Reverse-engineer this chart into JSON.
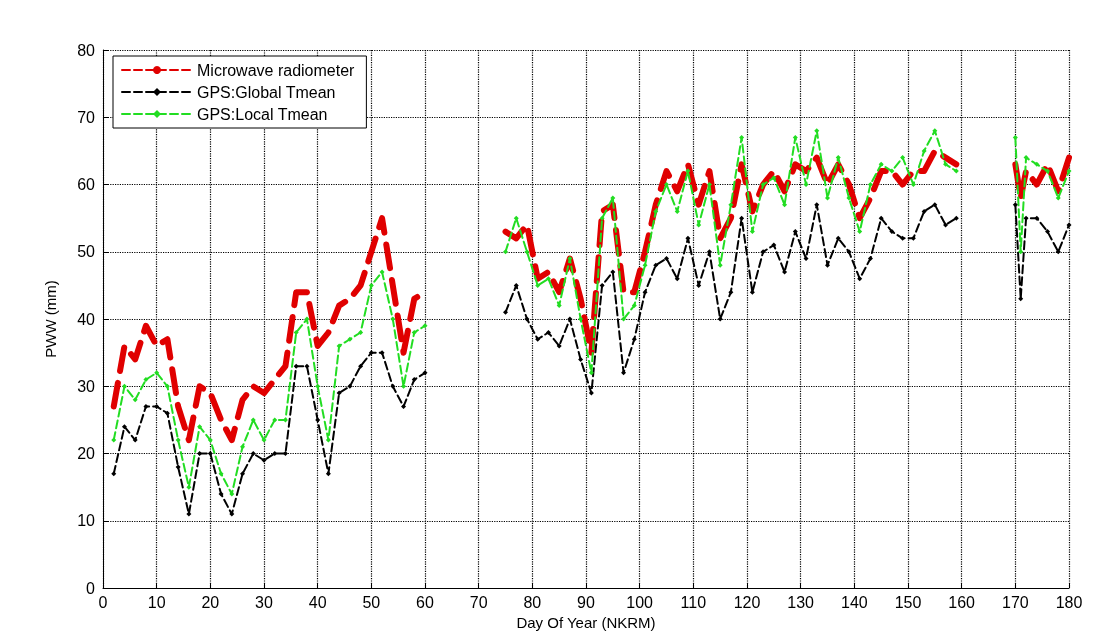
{
  "chart_data": {
    "type": "line",
    "xlabel": "Day Of Year (NKRM)",
    "ylabel": "PWW (mm)",
    "x": [
      2,
      4,
      6,
      8,
      10,
      12,
      14,
      16,
      18,
      20,
      22,
      24,
      26,
      28,
      30,
      32,
      34,
      36,
      38,
      40,
      42,
      44,
      46,
      48,
      50,
      52,
      54,
      56,
      58,
      60,
      68,
      75,
      77,
      79,
      81,
      83,
      85,
      87,
      89,
      91,
      93,
      95,
      97,
      99,
      101,
      103,
      105,
      107,
      109,
      111,
      113,
      115,
      117,
      119,
      121,
      123,
      125,
      127,
      129,
      131,
      133,
      135,
      137,
      139,
      141,
      143,
      145,
      147,
      149,
      151,
      153,
      155,
      157,
      159,
      165,
      170,
      171,
      172,
      174,
      176,
      178,
      180
    ],
    "series": [
      {
        "name": "Microwave radiometer",
        "color": "#e00000",
        "marker": "none",
        "line_style": "dashed",
        "values": [
          27,
          36,
          34,
          39,
          36,
          37,
          27,
          22,
          30,
          29,
          25,
          22,
          28,
          30,
          29,
          31,
          33,
          44,
          44,
          36,
          38,
          42,
          43,
          45,
          50,
          55,
          45,
          35,
          43,
          44,
          null,
          53,
          52,
          54,
          46,
          47,
          44,
          49,
          43,
          35,
          56,
          57,
          44,
          44,
          50,
          57,
          62,
          59,
          63,
          57,
          62,
          52,
          55,
          63,
          56,
          60,
          62,
          59,
          63,
          62,
          64,
          60,
          63,
          60,
          55,
          58,
          62,
          62,
          60,
          62,
          62,
          65,
          64,
          63,
          null,
          63,
          58,
          62,
          60,
          63,
          59,
          64
        ]
      },
      {
        "name": "GPS:Global Tmean",
        "color": "#000000",
        "marker": "diamond",
        "line_style": "dashed",
        "values": [
          17,
          24,
          22,
          27,
          27,
          26,
          18,
          11,
          20,
          20,
          14,
          11,
          17,
          20,
          19,
          20,
          20,
          33,
          33,
          25,
          17,
          29,
          30,
          33,
          35,
          35,
          30,
          27,
          31,
          32,
          null,
          41,
          45,
          40,
          37,
          38,
          36,
          40,
          34,
          29,
          45,
          47,
          32,
          37,
          44,
          48,
          49,
          46,
          52,
          45,
          50,
          40,
          44,
          55,
          44,
          50,
          51,
          47,
          53,
          49,
          57,
          48,
          52,
          50,
          46,
          49,
          55,
          53,
          52,
          52,
          56,
          57,
          54,
          55,
          null,
          57,
          43,
          55,
          55,
          53,
          50,
          54
        ]
      },
      {
        "name": "GPS:Local Tmean",
        "color": "#22dd22",
        "marker": "diamond",
        "line_style": "dashed",
        "values": [
          22,
          30,
          28,
          31,
          32,
          30,
          22,
          15,
          24,
          22,
          17,
          14,
          21,
          25,
          22,
          25,
          25,
          38,
          40,
          30,
          22,
          36,
          37,
          38,
          45,
          47,
          40,
          30,
          38,
          39,
          null,
          50,
          55,
          50,
          45,
          46,
          42,
          49,
          40,
          32,
          55,
          58,
          40,
          42,
          48,
          56,
          60,
          56,
          62,
          54,
          60,
          48,
          57,
          67,
          53,
          60,
          61,
          57,
          67,
          60,
          68,
          58,
          64,
          58,
          53,
          60,
          63,
          62,
          64,
          60,
          65,
          68,
          63,
          62,
          null,
          67,
          50,
          64,
          63,
          62,
          58,
          62
        ]
      }
    ],
    "xlim": [
      0,
      180
    ],
    "xticks": [
      0,
      10,
      20,
      30,
      40,
      50,
      60,
      70,
      80,
      90,
      100,
      110,
      120,
      130,
      140,
      150,
      160,
      170,
      180
    ],
    "ylim": [
      0,
      80
    ],
    "yticks": [
      0,
      10,
      20,
      30,
      40,
      50,
      60,
      70,
      80
    ],
    "grid": true,
    "legend": "top left"
  }
}
